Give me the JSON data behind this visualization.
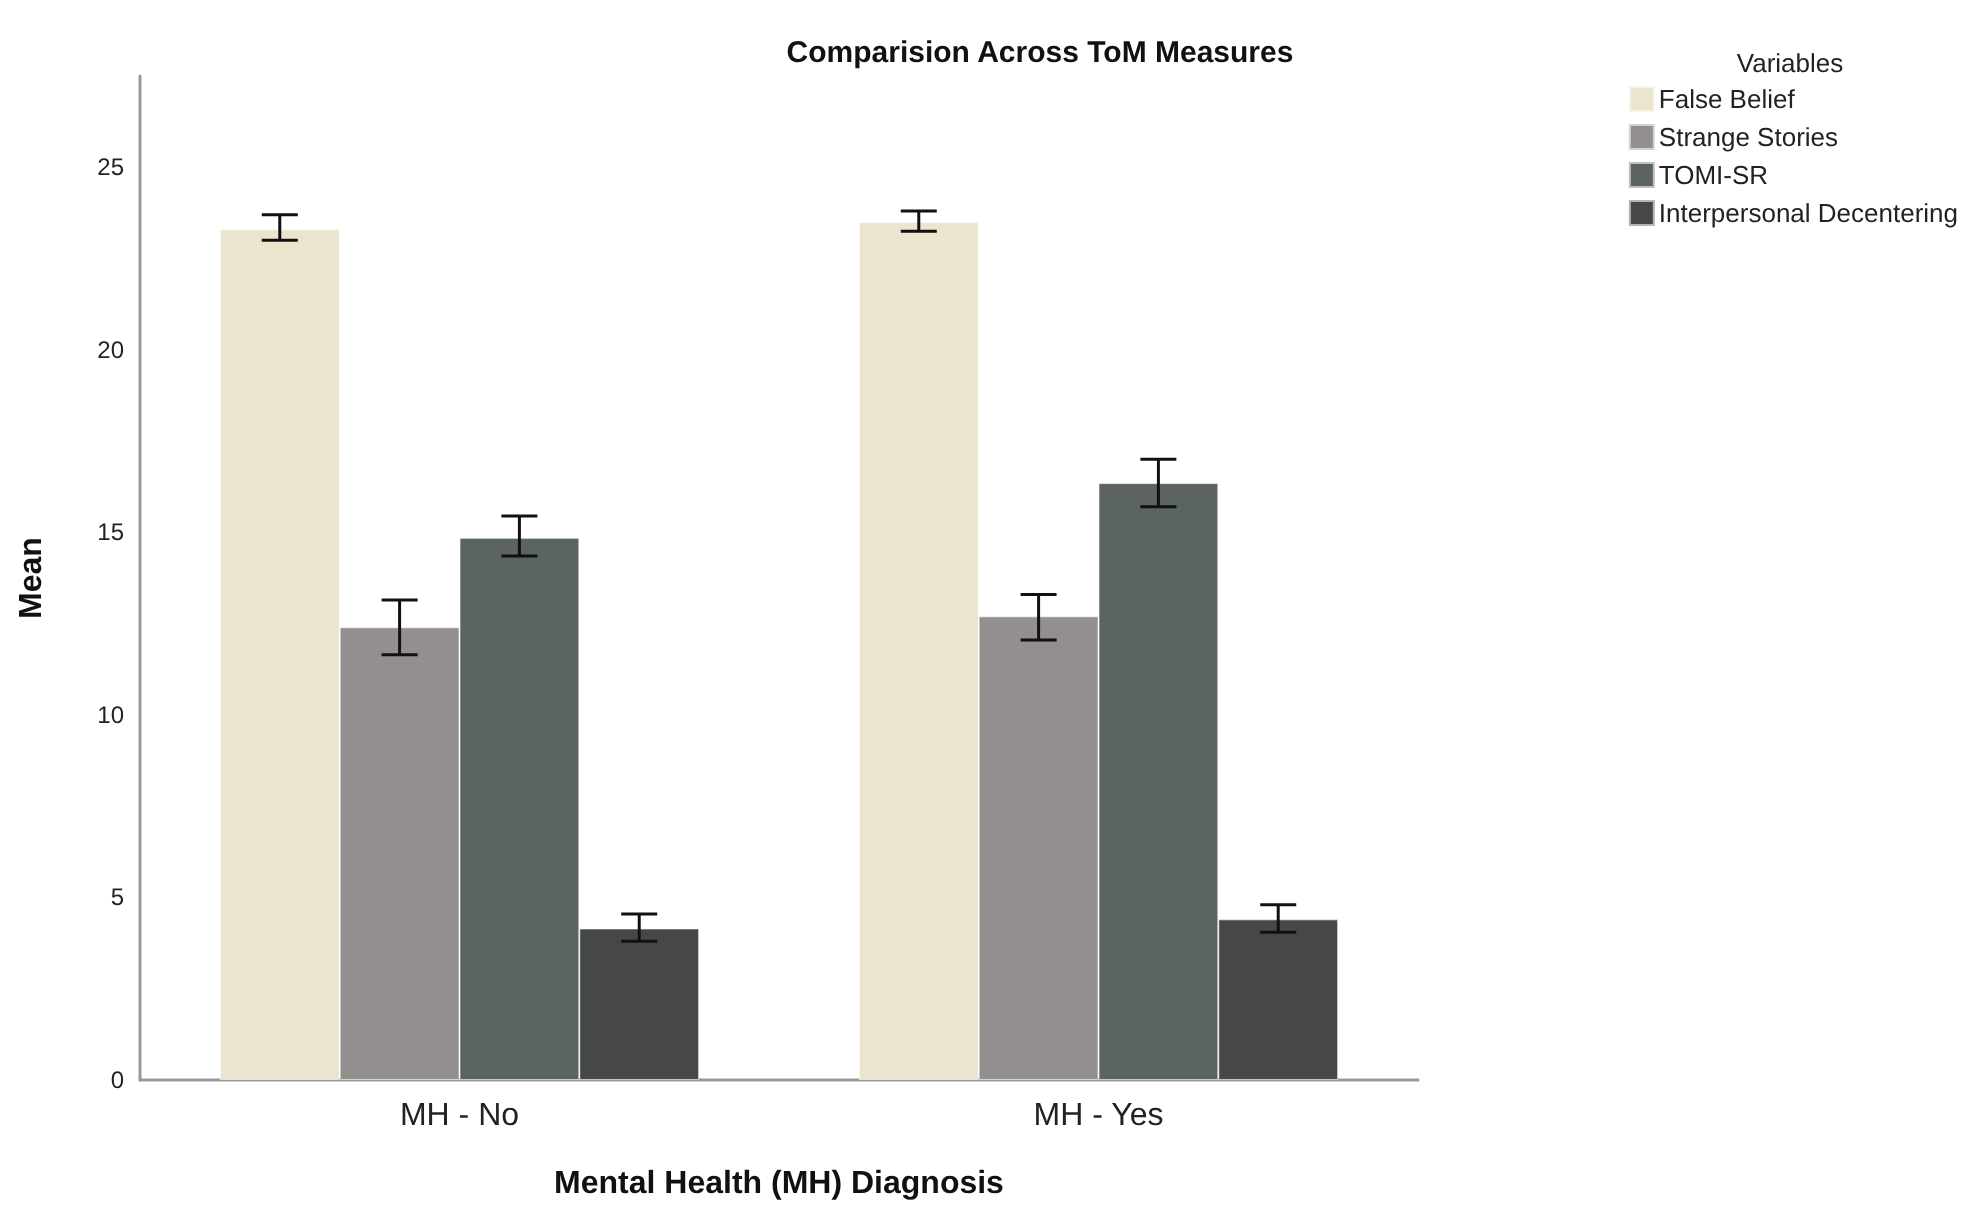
{
  "chart_data": {
    "type": "bar",
    "title": "Comparision Across ToM Measures",
    "xlabel": "Mental Health (MH) Diagnosis",
    "ylabel": "Mean",
    "legend_title": "Variables",
    "categories": [
      "MH - No",
      "MH - Yes"
    ],
    "series": [
      {
        "name": "False Belief",
        "color": "#ebe4cf",
        "values": [
          23.3,
          23.5
        ],
        "errors": [
          [
            23.0,
            23.7
          ],
          [
            23.25,
            23.8
          ]
        ]
      },
      {
        "name": "Strange Stories",
        "color": "#928f8e",
        "values": [
          12.4,
          12.7
        ],
        "errors": [
          [
            11.65,
            13.15
          ],
          [
            12.05,
            13.3
          ]
        ]
      },
      {
        "name": "TOMI-SR",
        "color": "#5b645f",
        "values": [
          14.85,
          16.35
        ],
        "errors": [
          [
            14.35,
            15.45
          ],
          [
            15.7,
            17.0
          ]
        ]
      },
      {
        "name": "Interpersonal Decentering",
        "color": "#464749",
        "values": [
          4.15,
          4.4
        ],
        "errors": [
          [
            3.8,
            4.55
          ],
          [
            4.05,
            4.8
          ]
        ]
      }
    ],
    "ylim": [
      0,
      27.5
    ],
    "yticks": [
      0,
      5,
      10,
      15,
      20,
      25
    ],
    "grid": false,
    "legend": "top right"
  }
}
